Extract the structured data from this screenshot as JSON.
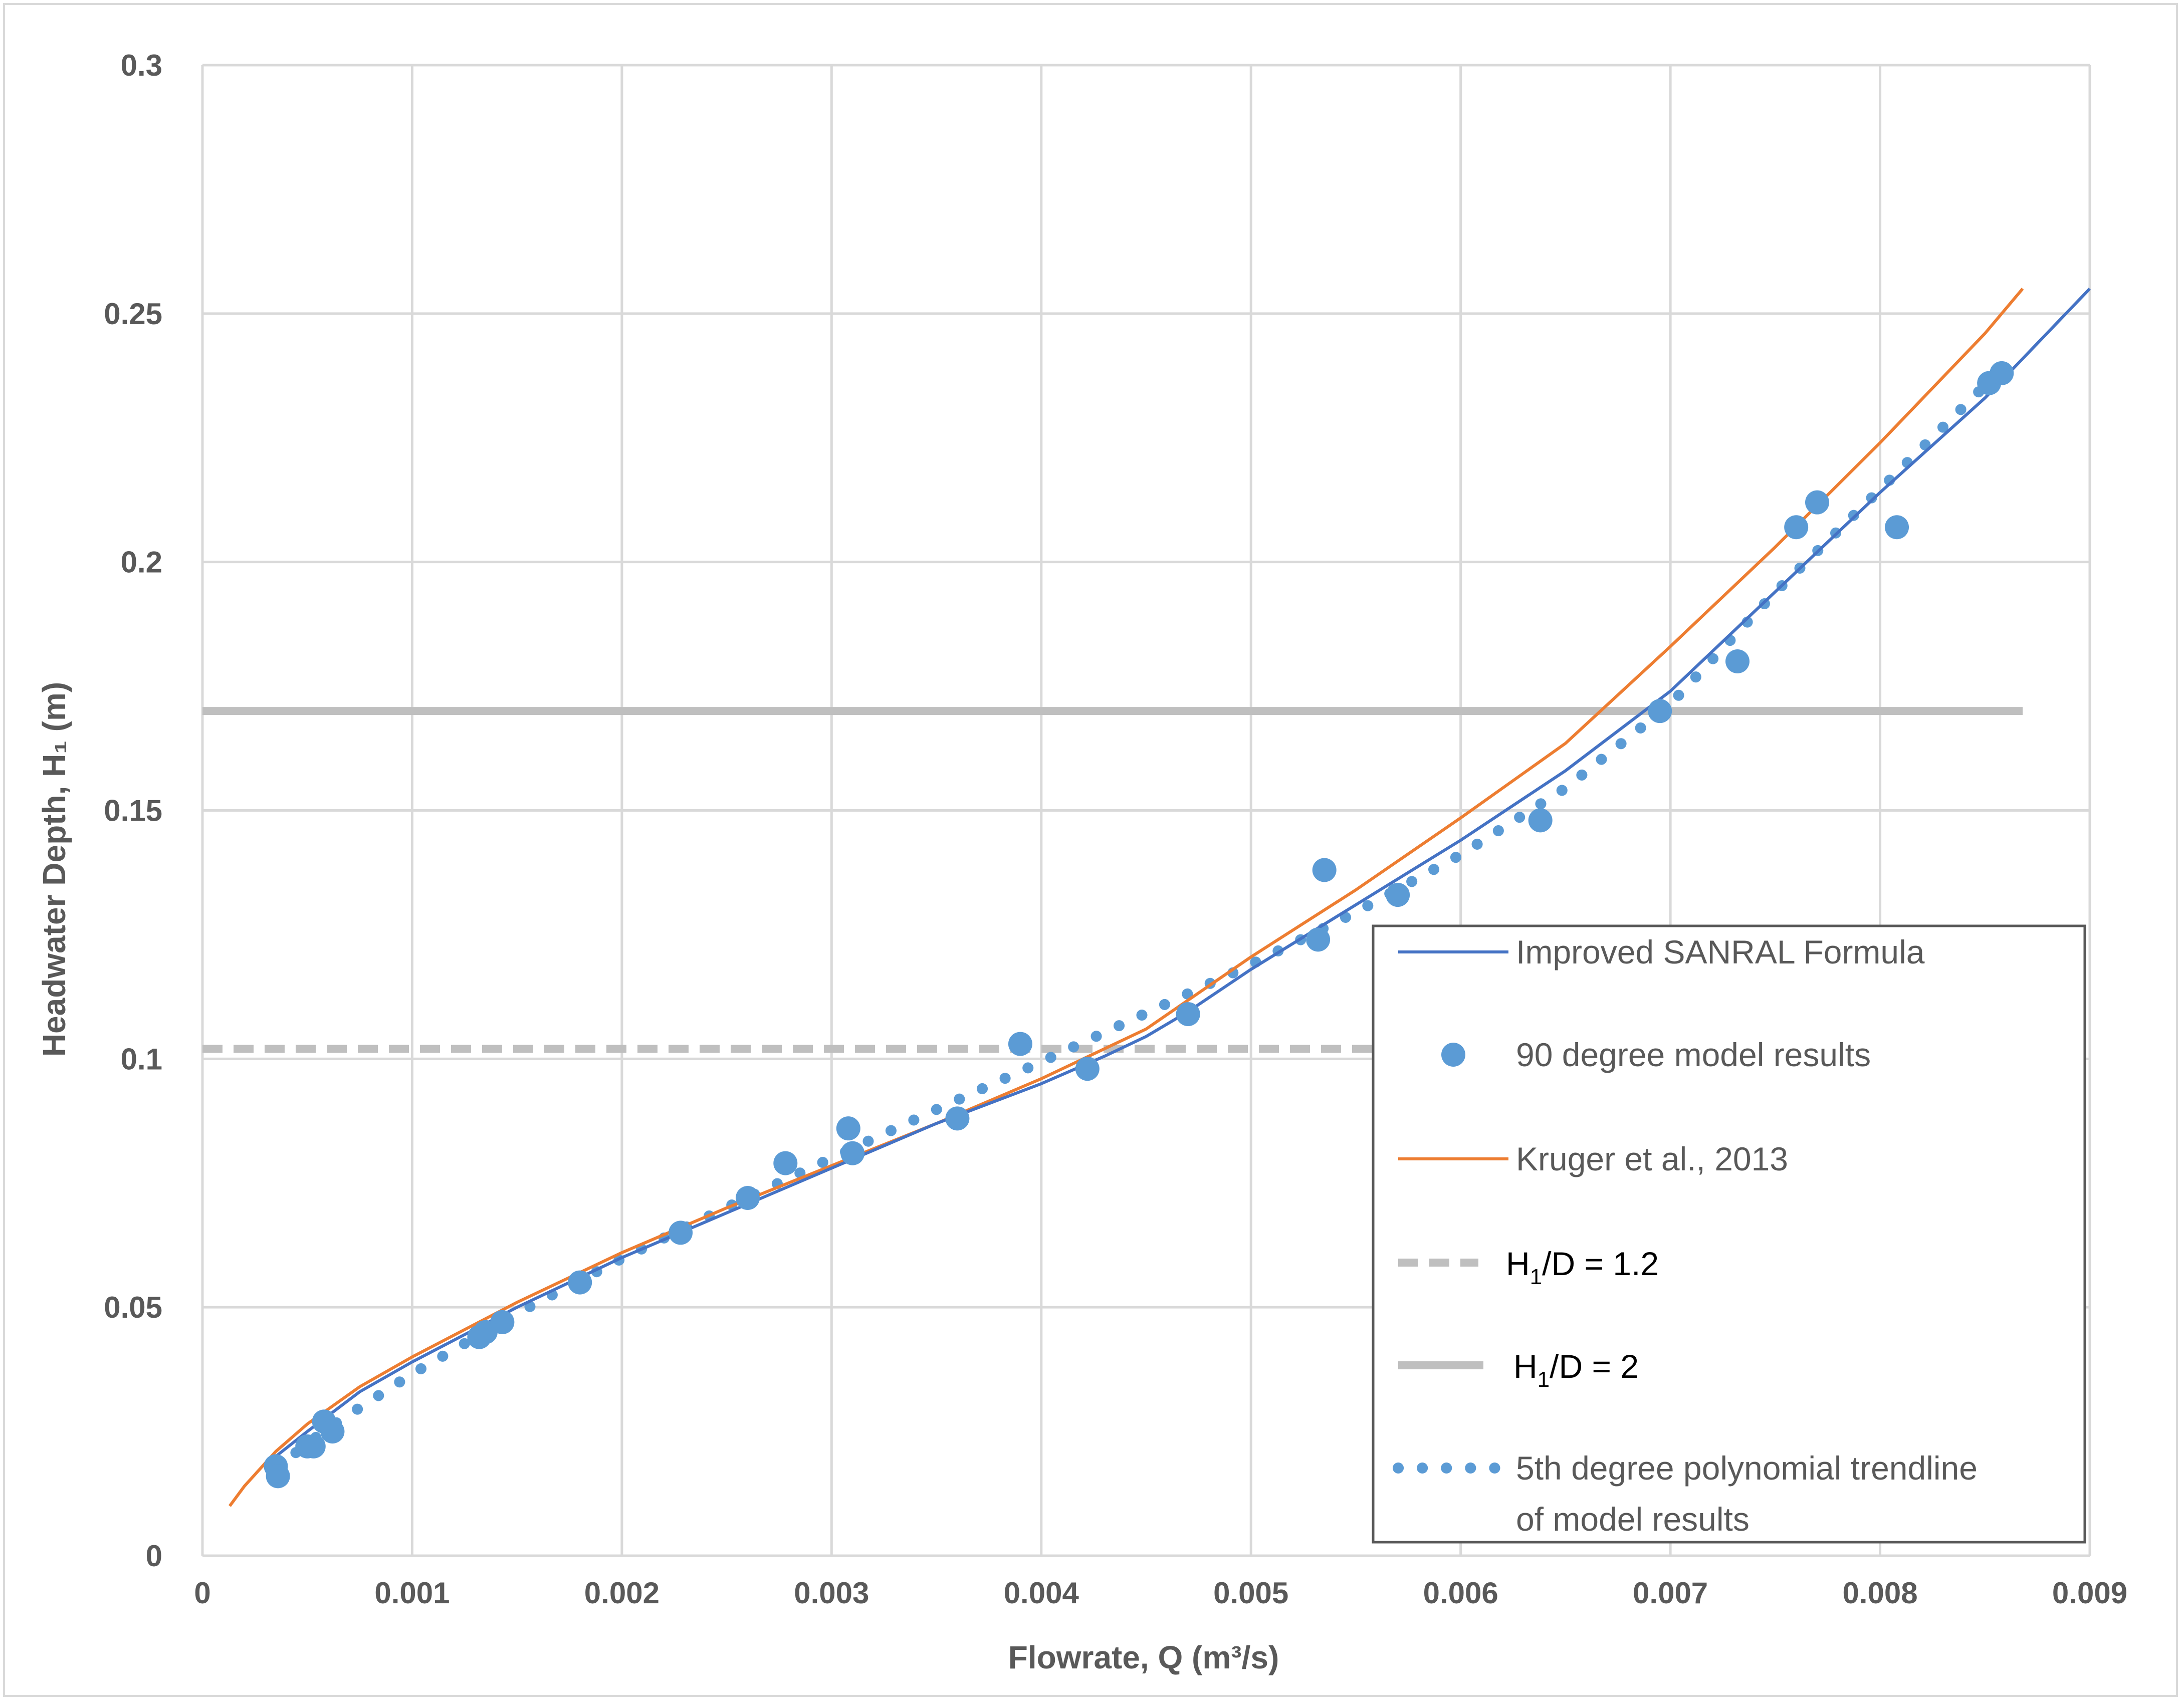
{
  "chart_data": {
    "type": "scatter",
    "xlabel": "Flowrate, Q (m³/s)",
    "ylabel": "Headwater Depth, H₁ (m)",
    "xlim": [
      0,
      0.009
    ],
    "ylim": [
      0,
      0.3
    ],
    "x_ticks": [
      "0",
      "0.001",
      "0.002",
      "0.003",
      "0.004",
      "0.005",
      "0.006",
      "0.007",
      "0.008",
      "0.009"
    ],
    "y_ticks": [
      "0",
      "0.05",
      "0.1",
      "0.15",
      "0.2",
      "0.25",
      "0.3"
    ],
    "grid": true,
    "legend_position": "right",
    "colors": {
      "model": "#5b9bd5",
      "sanral": "#4472c4",
      "kruger": "#ed7d31",
      "h1d12": "#bfbfbf",
      "h1d2": "#bfbfbf",
      "grid": "#d9d9d9"
    },
    "series": [
      {
        "name": "Improved SANRAL Formula",
        "kind": "line",
        "points": [
          [
            0.00035,
            0.02
          ],
          [
            0.0005,
            0.025
          ],
          [
            0.00075,
            0.033
          ],
          [
            0.001,
            0.039
          ],
          [
            0.0015,
            0.05
          ],
          [
            0.002,
            0.06
          ],
          [
            0.0025,
            0.069
          ],
          [
            0.003,
            0.078
          ],
          [
            0.0035,
            0.087
          ],
          [
            0.004,
            0.095
          ],
          [
            0.0043,
            0.1005
          ],
          [
            0.0045,
            0.1045
          ],
          [
            0.0047,
            0.1095
          ],
          [
            0.005,
            0.118
          ],
          [
            0.0055,
            0.131
          ],
          [
            0.006,
            0.144
          ],
          [
            0.0065,
            0.158
          ],
          [
            0.007,
            0.174
          ],
          [
            0.0075,
            0.194
          ],
          [
            0.008,
            0.214
          ],
          [
            0.0085,
            0.233
          ],
          [
            0.009,
            0.255
          ]
        ]
      },
      {
        "name": "90 degree model results",
        "kind": "markers",
        "points": [
          [
            0.00035,
            0.018
          ],
          [
            0.00036,
            0.016
          ],
          [
            0.0005,
            0.022
          ],
          [
            0.00053,
            0.022
          ],
          [
            0.00058,
            0.027
          ],
          [
            0.00062,
            0.025
          ],
          [
            0.00132,
            0.044
          ],
          [
            0.00135,
            0.045
          ],
          [
            0.00143,
            0.047
          ],
          [
            0.0018,
            0.055
          ],
          [
            0.00228,
            0.065
          ],
          [
            0.0026,
            0.072
          ],
          [
            0.00278,
            0.079
          ],
          [
            0.00308,
            0.086
          ],
          [
            0.0031,
            0.081
          ],
          [
            0.0036,
            0.088
          ],
          [
            0.0039,
            0.103
          ],
          [
            0.00422,
            0.098
          ],
          [
            0.0047,
            0.109
          ],
          [
            0.00532,
            0.124
          ],
          [
            0.00535,
            0.138
          ],
          [
            0.0057,
            0.133
          ],
          [
            0.00638,
            0.148
          ],
          [
            0.00695,
            0.17
          ],
          [
            0.00732,
            0.18
          ],
          [
            0.0076,
            0.207
          ],
          [
            0.0077,
            0.212
          ],
          [
            0.00808,
            0.207
          ],
          [
            0.00852,
            0.236
          ],
          [
            0.00858,
            0.238
          ]
        ]
      },
      {
        "name": "Kruger et al., 2013",
        "kind": "line",
        "points": [
          [
            0.00013,
            0.01
          ],
          [
            0.0002,
            0.014
          ],
          [
            0.00035,
            0.021
          ],
          [
            0.0005,
            0.0265
          ],
          [
            0.00075,
            0.034
          ],
          [
            0.001,
            0.04
          ],
          [
            0.0015,
            0.051
          ],
          [
            0.002,
            0.061
          ],
          [
            0.0025,
            0.07
          ],
          [
            0.003,
            0.0785
          ],
          [
            0.0035,
            0.087
          ],
          [
            0.004,
            0.096
          ],
          [
            0.0045,
            0.106
          ],
          [
            0.005,
            0.1205
          ],
          [
            0.0055,
            0.134
          ],
          [
            0.006,
            0.1485
          ],
          [
            0.0065,
            0.1635
          ],
          [
            0.007,
            0.183
          ],
          [
            0.0075,
            0.203
          ],
          [
            0.008,
            0.224
          ],
          [
            0.0085,
            0.246
          ],
          [
            0.00868,
            0.255
          ]
        ]
      },
      {
        "name": "H₁/D = 1.2",
        "kind": "hline",
        "y": 0.102,
        "x_range": [
          0,
          0.00868
        ]
      },
      {
        "name": "H₁/D = 2",
        "kind": "hline",
        "y": 0.17,
        "x_range": [
          0,
          0.00868
        ]
      },
      {
        "name": "5th degree polynomial trendline of model results",
        "kind": "dotted",
        "points": [
          [
            0.00035,
            0.0177
          ],
          [
            0.0006,
            0.0257
          ],
          [
            0.001,
            0.0366
          ],
          [
            0.0015,
            0.0488
          ],
          [
            0.002,
            0.0598
          ],
          [
            0.0025,
            0.0701
          ],
          [
            0.003,
            0.08
          ],
          [
            0.0035,
            0.0898
          ],
          [
            0.004,
            0.0994
          ],
          [
            0.0045,
            0.1092
          ],
          [
            0.005,
            0.119
          ],
          [
            0.0055,
            0.1295
          ],
          [
            0.006,
            0.1411
          ],
          [
            0.0065,
            0.1545
          ],
          [
            0.007,
            0.1714
          ],
          [
            0.0075,
            0.1939
          ],
          [
            0.008,
            0.2146
          ],
          [
            0.0085,
            0.2355
          ],
          [
            0.00858,
            0.2375
          ]
        ]
      }
    ],
    "legend": [
      {
        "label": "Improved SANRAL Formula"
      },
      {
        "label": "90 degree model results"
      },
      {
        "label": "Kruger et al., 2013"
      },
      {
        "label_main": "H",
        "label_sub": "1",
        "label_rest": "/D = 1.2"
      },
      {
        "label_main": "H",
        "label_sub": "1",
        "label_rest": "/D = 2"
      },
      {
        "label_line1": "5th degree polynomial trendline",
        "label_line2": "of model results"
      }
    ]
  }
}
